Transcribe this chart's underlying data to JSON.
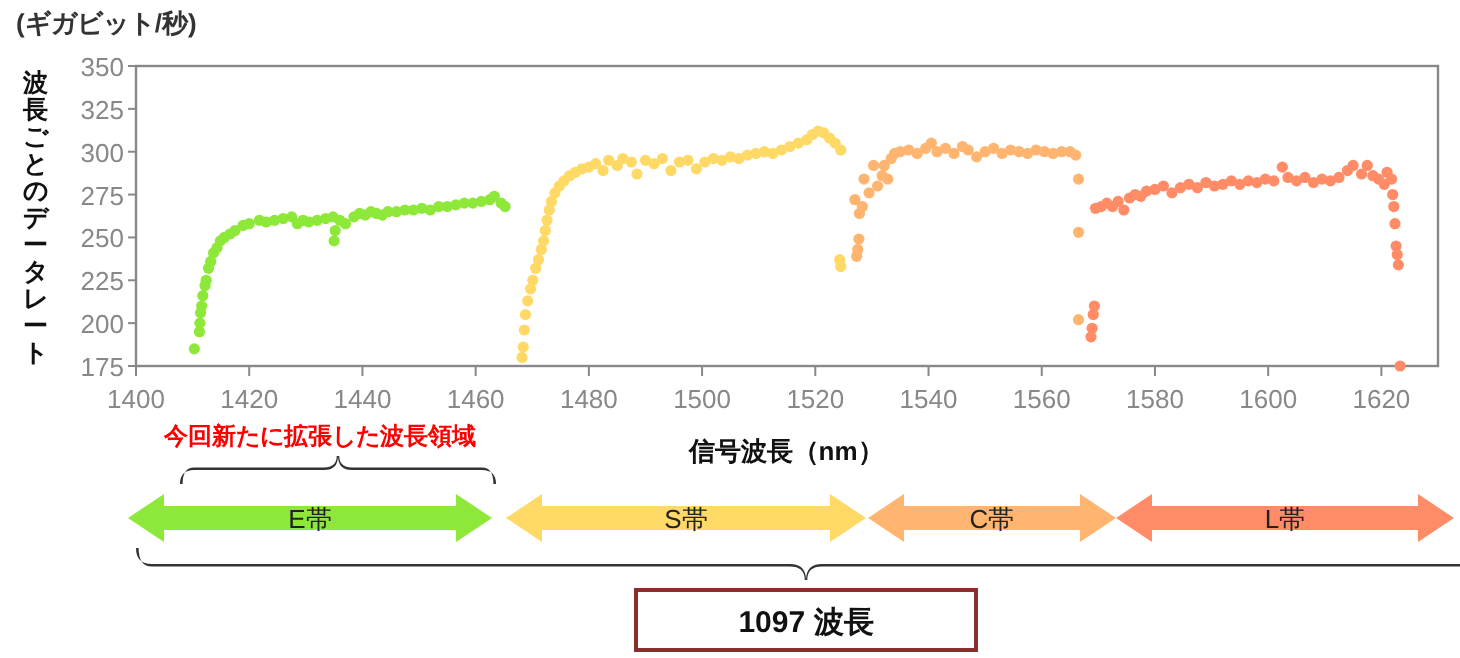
{
  "chart_data": {
    "type": "scatter",
    "title": "(ギガビット/秒)",
    "ylabel": "波長ごとのデータレート",
    "xlabel": "信号波長（nm）",
    "xlim": [
      1400,
      1630
    ],
    "xticks": [
      1400,
      1420,
      1440,
      1460,
      1480,
      1500,
      1520,
      1540,
      1560,
      1580,
      1600,
      1620
    ],
    "ylim": [
      175,
      350
    ],
    "yticks": [
      175,
      200,
      225,
      250,
      275,
      300,
      325,
      350
    ],
    "marker": "circle",
    "grid": false,
    "annotations": [
      "今回新たに拡張した波長領域",
      "E帯",
      "S帯",
      "C帯",
      "L帯",
      "1097 波長"
    ],
    "series": [
      {
        "color": "#8ee83a",
        "x": [
          1410.3,
          1411.2,
          1411.3,
          1411.4,
          1411.6,
          1411.8,
          1412.2,
          1412.4,
          1412.8,
          1413.2,
          1413.7,
          1414.3,
          1414.9,
          1415.6,
          1416.6,
          1417.5,
          1418.9,
          1420,
          1421.8,
          1423,
          1424.5,
          1426,
          1427.5,
          1428.5,
          1429.5,
          1430.5,
          1432,
          1433.5,
          1434.8,
          1435,
          1435.2,
          1436,
          1437,
          1438.5,
          1439.5,
          1440.5,
          1441.5,
          1442.5,
          1443.5,
          1444.5,
          1446,
          1447.5,
          1449,
          1450.5,
          1452,
          1453.5,
          1455,
          1456.5,
          1458,
          1459.5,
          1461,
          1462.5,
          1463.3,
          1464.5,
          1465.2
        ],
        "values": [
          185,
          195,
          200,
          206,
          210,
          216,
          222,
          225,
          232,
          236,
          241,
          244,
          248,
          250,
          252,
          254,
          257,
          258,
          260,
          259,
          260,
          261,
          262,
          258,
          260,
          259,
          260,
          261,
          262,
          248,
          254,
          260,
          258,
          262,
          264,
          263,
          265,
          264,
          263,
          265,
          265,
          266,
          266,
          267,
          266,
          268,
          268,
          269,
          270,
          270,
          271,
          272,
          274,
          270,
          268
        ]
      },
      {
        "color": "#ffd966",
        "x": [
          1468.2,
          1468.4,
          1468.6,
          1468.8,
          1469.2,
          1469.7,
          1470.1,
          1470.6,
          1471.1,
          1471.6,
          1472,
          1472.3,
          1472.6,
          1473,
          1473.4,
          1474,
          1474.8,
          1475.6,
          1476.6,
          1477.6,
          1478.8,
          1480,
          1481.2,
          1482.5,
          1483.5,
          1485,
          1486,
          1487.5,
          1488.5,
          1490,
          1491.5,
          1493,
          1494.5,
          1496,
          1497.5,
          1499,
          1500.5,
          1502,
          1503.5,
          1505,
          1506.5,
          1508,
          1509.5,
          1511,
          1512.5,
          1514,
          1515.5,
          1517,
          1518.5,
          1519.5,
          1520.5,
          1521.5,
          1522.5,
          1523.5,
          1524.5,
          1524.3,
          1524.5
        ],
        "values": [
          180,
          186,
          196,
          205,
          213,
          220,
          225,
          232,
          237,
          243,
          248,
          254,
          260,
          266,
          271,
          276,
          280,
          283,
          286,
          288,
          290,
          291,
          293,
          289,
          295,
          292,
          296,
          294,
          287,
          295,
          293,
          296,
          289,
          294,
          295,
          290,
          294,
          296,
          295,
          297,
          296,
          298,
          299,
          300,
          299,
          301,
          303,
          305,
          307,
          310,
          312,
          311,
          308,
          305,
          301,
          237,
          233
        ]
      },
      {
        "color": "#ffb570",
        "x": [
          1527.3,
          1527.5,
          1527.7,
          1527.0,
          1527.8,
          1528.3,
          1528.6,
          1529.5,
          1530.3,
          1531.0,
          1531.8,
          1532.2,
          1532.8,
          1533.4,
          1534,
          1535,
          1536.5,
          1538,
          1539.5,
          1540.5,
          1541.5,
          1543,
          1544.5,
          1546,
          1547,
          1548.5,
          1550,
          1551.5,
          1553,
          1554.5,
          1556,
          1557.5,
          1559,
          1560.5,
          1562,
          1563.5,
          1565,
          1566,
          1566.5,
          1566.5,
          1566.5
        ],
        "values": [
          239,
          243,
          249,
          272,
          264,
          268,
          284,
          276,
          292,
          280,
          286,
          292,
          284,
          296,
          299,
          300,
          301,
          299,
          302,
          305,
          300,
          302,
          299,
          303,
          301,
          297,
          300,
          302,
          299,
          301,
          300,
          299,
          301,
          300,
          299,
          300,
          300,
          298,
          284,
          253,
          202
        ]
      },
      {
        "color": "#ff8c66",
        "x": [
          1568.7,
          1568.9,
          1569.1,
          1569.3,
          1569.5,
          1570.5,
          1571.5,
          1572.5,
          1573.5,
          1574.5,
          1575.5,
          1576.5,
          1577.5,
          1578.5,
          1580,
          1581.5,
          1583,
          1584.5,
          1586,
          1587.5,
          1589,
          1590.5,
          1592,
          1593.5,
          1595,
          1596.5,
          1598,
          1599.5,
          1601,
          1602.5,
          1603.5,
          1605,
          1606.5,
          1608,
          1609.5,
          1611,
          1612.5,
          1614,
          1615,
          1616.5,
          1617.5,
          1618.5,
          1619.5,
          1620.5,
          1621,
          1621.8,
          1622,
          1622.2,
          1622.4,
          1622.6,
          1622.8,
          1623,
          1623.3
        ],
        "values": [
          192,
          197,
          205,
          210,
          267,
          268,
          270,
          268,
          271,
          266,
          273,
          275,
          274,
          277,
          278,
          280,
          276,
          279,
          281,
          279,
          282,
          280,
          281,
          283,
          281,
          283,
          282,
          284,
          283,
          291,
          285,
          283,
          285,
          282,
          284,
          283,
          285,
          289,
          292,
          287,
          292,
          286,
          284,
          281,
          288,
          284,
          275,
          268,
          258,
          245,
          240,
          234,
          175
        ]
      }
    ]
  }
}
